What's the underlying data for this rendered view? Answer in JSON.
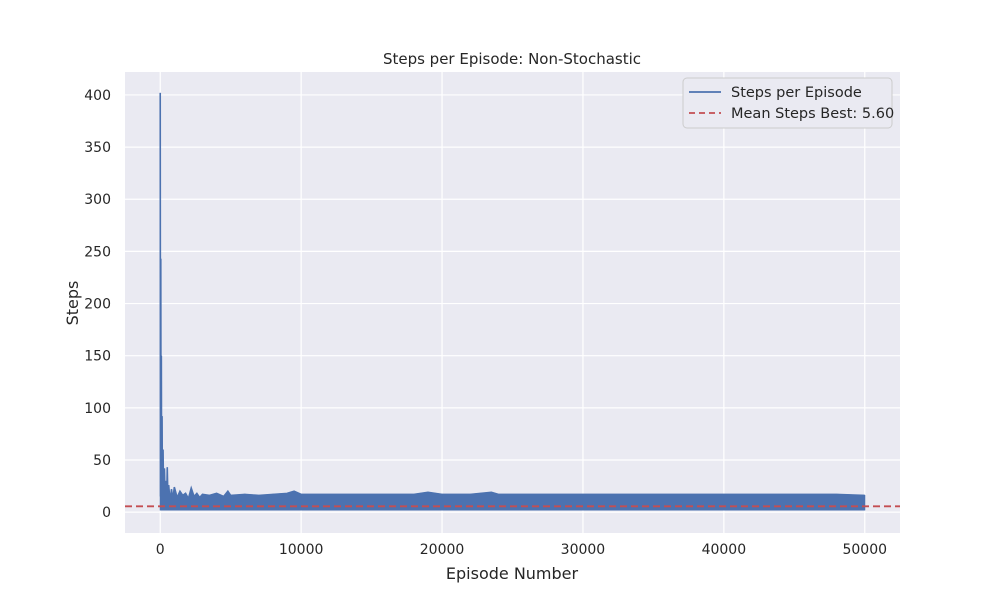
{
  "chart_data": {
    "type": "line",
    "title": "Steps per Episode: Non-Stochastic",
    "xlabel": "Episode Number",
    "ylabel": "Steps",
    "xlim": [
      -2500,
      52500
    ],
    "ylim": [
      -20,
      422
    ],
    "x_ticks": [
      0,
      10000,
      20000,
      30000,
      40000,
      50000
    ],
    "y_ticks": [
      0,
      50,
      100,
      150,
      200,
      250,
      300,
      350,
      400
    ],
    "grid": true,
    "legend_position": "top-right",
    "series": [
      {
        "name": "Steps per Episode",
        "color": "#4c72b0",
        "style": "solid",
        "x": [
          0,
          20,
          40,
          60,
          80,
          100,
          130,
          160,
          200,
          250,
          300,
          350,
          400,
          450,
          500,
          550,
          600,
          700,
          800,
          900,
          1000,
          1200,
          1400,
          1600,
          1800,
          2000,
          2200,
          2400,
          2600,
          2800,
          3000,
          3500,
          4000,
          4500,
          4800,
          5000,
          6000,
          7000,
          8000,
          9000,
          9500,
          10000,
          12000,
          14000,
          16000,
          18000,
          19000,
          20000,
          22000,
          23500,
          24000,
          26000,
          28000,
          30000,
          32000,
          34000,
          36000,
          38000,
          40000,
          42000,
          44000,
          46000,
          48000,
          50000
        ],
        "y": [
          402,
          15,
          243,
          8,
          150,
          12,
          92,
          6,
          60,
          4,
          42,
          7,
          30,
          5,
          43,
          8,
          26,
          10,
          22,
          12,
          24,
          14,
          20,
          16,
          18,
          13,
          23,
          15,
          18,
          14,
          17,
          16,
          18,
          15,
          20,
          16,
          17,
          16,
          17,
          18,
          20,
          17,
          17,
          17,
          17,
          17,
          19,
          17,
          17,
          19,
          17,
          17,
          17,
          17,
          17,
          17,
          17,
          17,
          17,
          17,
          17,
          17,
          17,
          16
        ],
        "y_min_band": [
          2,
          2,
          2,
          2,
          2,
          2,
          2,
          2,
          2,
          2,
          2,
          2,
          2,
          2,
          2,
          2,
          2,
          2,
          2,
          2,
          2,
          2,
          2,
          2,
          2,
          2,
          2,
          2,
          2,
          2,
          2,
          2,
          2,
          2,
          2,
          2,
          2,
          2,
          2,
          2,
          2,
          2,
          2,
          2,
          2,
          2,
          2,
          2,
          2,
          2,
          2,
          2,
          2,
          2,
          2,
          2,
          2,
          2,
          2,
          2,
          2,
          2,
          2,
          2
        ]
      },
      {
        "name": "Mean Steps Best: 5.60",
        "color": "#c44e52",
        "style": "dashed",
        "value": 5.6
      }
    ]
  }
}
